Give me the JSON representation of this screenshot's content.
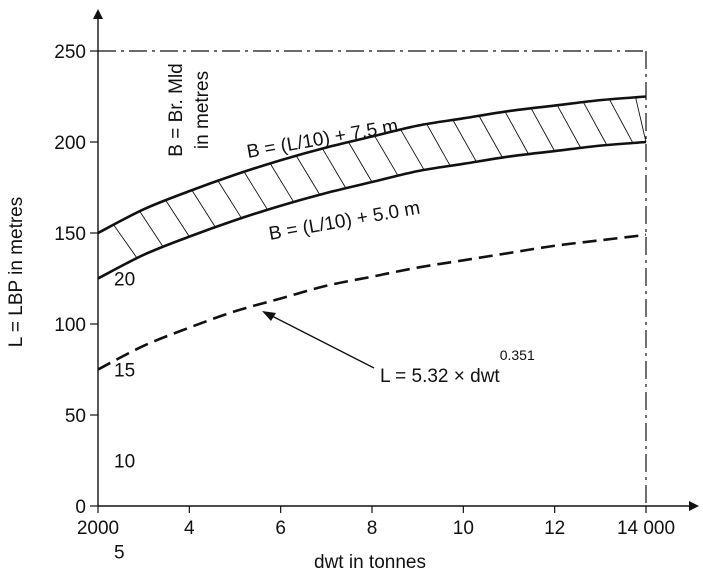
{
  "chart_data": {
    "type": "line",
    "xlabel": "dwt in tonnes",
    "ylabel": "L = LBP in metres",
    "xlim": [
      2000,
      14000
    ],
    "ylim": [
      0,
      250
    ],
    "x_tick_labels": [
      {
        "value": 2000,
        "label": "2000"
      },
      {
        "value": 4000,
        "label": "4"
      },
      {
        "value": 6000,
        "label": "6"
      },
      {
        "value": 8000,
        "label": "8"
      },
      {
        "value": 10000,
        "label": "10"
      },
      {
        "value": 12000,
        "label": "12"
      },
      {
        "value": 14000,
        "label": "14 000"
      }
    ],
    "y_tick_labels": [
      {
        "value": 0,
        "label": "0"
      },
      {
        "value": 50,
        "label": "50"
      },
      {
        "value": 100,
        "label": "100"
      },
      {
        "value": 150,
        "label": "150"
      },
      {
        "value": 200,
        "label": "200"
      },
      {
        "value": 250,
        "label": "250"
      }
    ],
    "secondary_axis": {
      "label_line1": "B = Br. Mld",
      "label_line2": "in metres",
      "ticks": [
        {
          "value": 5,
          "label": "5"
        },
        {
          "value": 10,
          "label": "10"
        },
        {
          "value": 15,
          "label": "15"
        },
        {
          "value": 20,
          "label": "20"
        }
      ]
    },
    "series": [
      {
        "label": "B = (L/10) + 7.5 m",
        "style": "solid",
        "x": [
          2000,
          3000,
          4000,
          5000,
          6000,
          7000,
          8000,
          9000,
          10000,
          11000,
          12000,
          13000,
          14000
        ],
        "y": [
          150,
          163,
          173,
          182,
          190,
          197,
          203,
          209,
          213,
          217,
          220,
          223,
          225
        ]
      },
      {
        "label": "B = (L/10) + 5.0 m",
        "style": "solid",
        "x": [
          2000,
          3000,
          4000,
          5000,
          6000,
          7000,
          8000,
          9000,
          10000,
          11000,
          12000,
          13000,
          14000
        ],
        "y": [
          125,
          138,
          148,
          157,
          165,
          172,
          178,
          184,
          188,
          192,
          195,
          198,
          200
        ]
      },
      {
        "label": "L = 5.32 × dwt",
        "label_exponent": "0.351",
        "style": "dashed",
        "x": [
          2000,
          3000,
          4000,
          5000,
          6000,
          7000,
          8000,
          9000,
          10000,
          11000,
          12000,
          13000,
          14000
        ],
        "y": [
          75,
          88,
          98,
          107,
          114,
          121,
          126,
          131,
          135,
          139,
          143,
          146,
          149
        ]
      }
    ],
    "reference_line_y": 250,
    "reference_line_x": 14000,
    "hatched_band_between": [
      0,
      1
    ],
    "grid": false
  }
}
